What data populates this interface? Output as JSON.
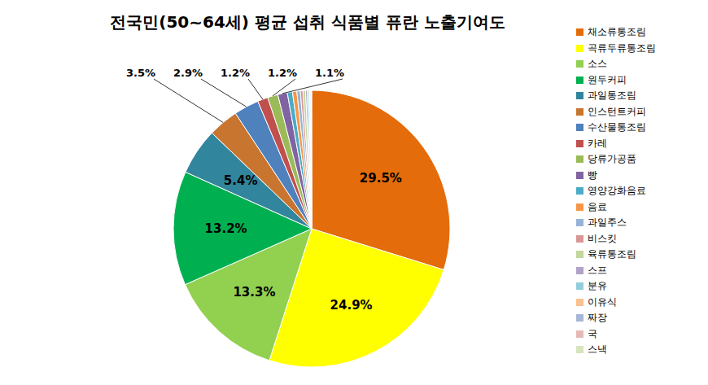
{
  "chart_data": {
    "type": "pie",
    "title": "전국민(50~64세) 평균 섭취 식품별 퓨란 노출기여도",
    "categories": [
      "채소류통조림",
      "곡류두류통조림",
      "소스",
      "원두커피",
      "과일통조림",
      "인스턴트커피",
      "수산물통조림",
      "카레",
      "당류가공품",
      "빵",
      "영양강화음료",
      "음료",
      "과일주스",
      "비스킷",
      "육류통조림",
      "스프",
      "분유",
      "이유식",
      "짜장",
      "국",
      "스낵"
    ],
    "values": [
      29.5,
      24.9,
      13.3,
      13.2,
      5.4,
      3.5,
      2.9,
      1.2,
      1.2,
      1.1,
      0.6,
      0.5,
      0.4,
      0.3,
      0.3,
      0.2,
      0.2,
      0.1,
      0.1,
      0.05,
      0.05
    ],
    "value_labels": [
      "29.5%",
      "24.9%",
      "13.3%",
      "13.2%",
      "5.4%",
      "3.5%",
      "2.9%",
      "1.2%",
      "1.2%",
      "1.1%",
      null,
      null,
      null,
      null,
      null,
      null,
      null,
      null,
      null,
      null,
      null
    ],
    "colors": [
      "#E46C0A",
      "#FFFF00",
      "#92D050",
      "#00B050",
      "#31859C",
      "#C8752F",
      "#4F81BD",
      "#C0504D",
      "#9BBB59",
      "#8064A2",
      "#4BACC6",
      "#F79646",
      "#95B3D7",
      "#D99694",
      "#C3D69B",
      "#B3A2C7",
      "#93CDDD",
      "#FAC090",
      "#A5B6D6",
      "#E6B9B8",
      "#D7E4BD"
    ],
    "legend": "right",
    "data_labels": true
  }
}
